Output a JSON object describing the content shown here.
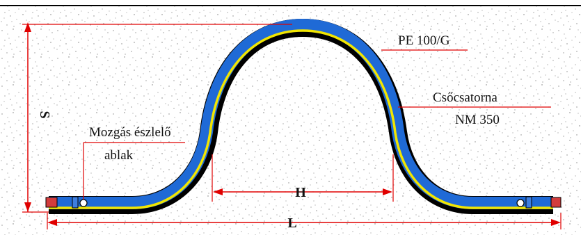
{
  "labels": {
    "pipe_material": "PE 100/G",
    "conduit_line1": "Csőcsatorna",
    "conduit_line2": "NM 350",
    "window_line1": "Mozgás észlelő",
    "window_line2": "ablak"
  },
  "dimensions": {
    "height": "S",
    "width": "H",
    "length": "L"
  },
  "colors": {
    "pipe_outer": "#1f6ad6",
    "pipe_stripe": "#f2e600",
    "pipe_shadow": "#000000",
    "dimension_line": "#e00000",
    "end_cap": "#d23c3c",
    "background_speckle": "#8a8a8a"
  }
}
